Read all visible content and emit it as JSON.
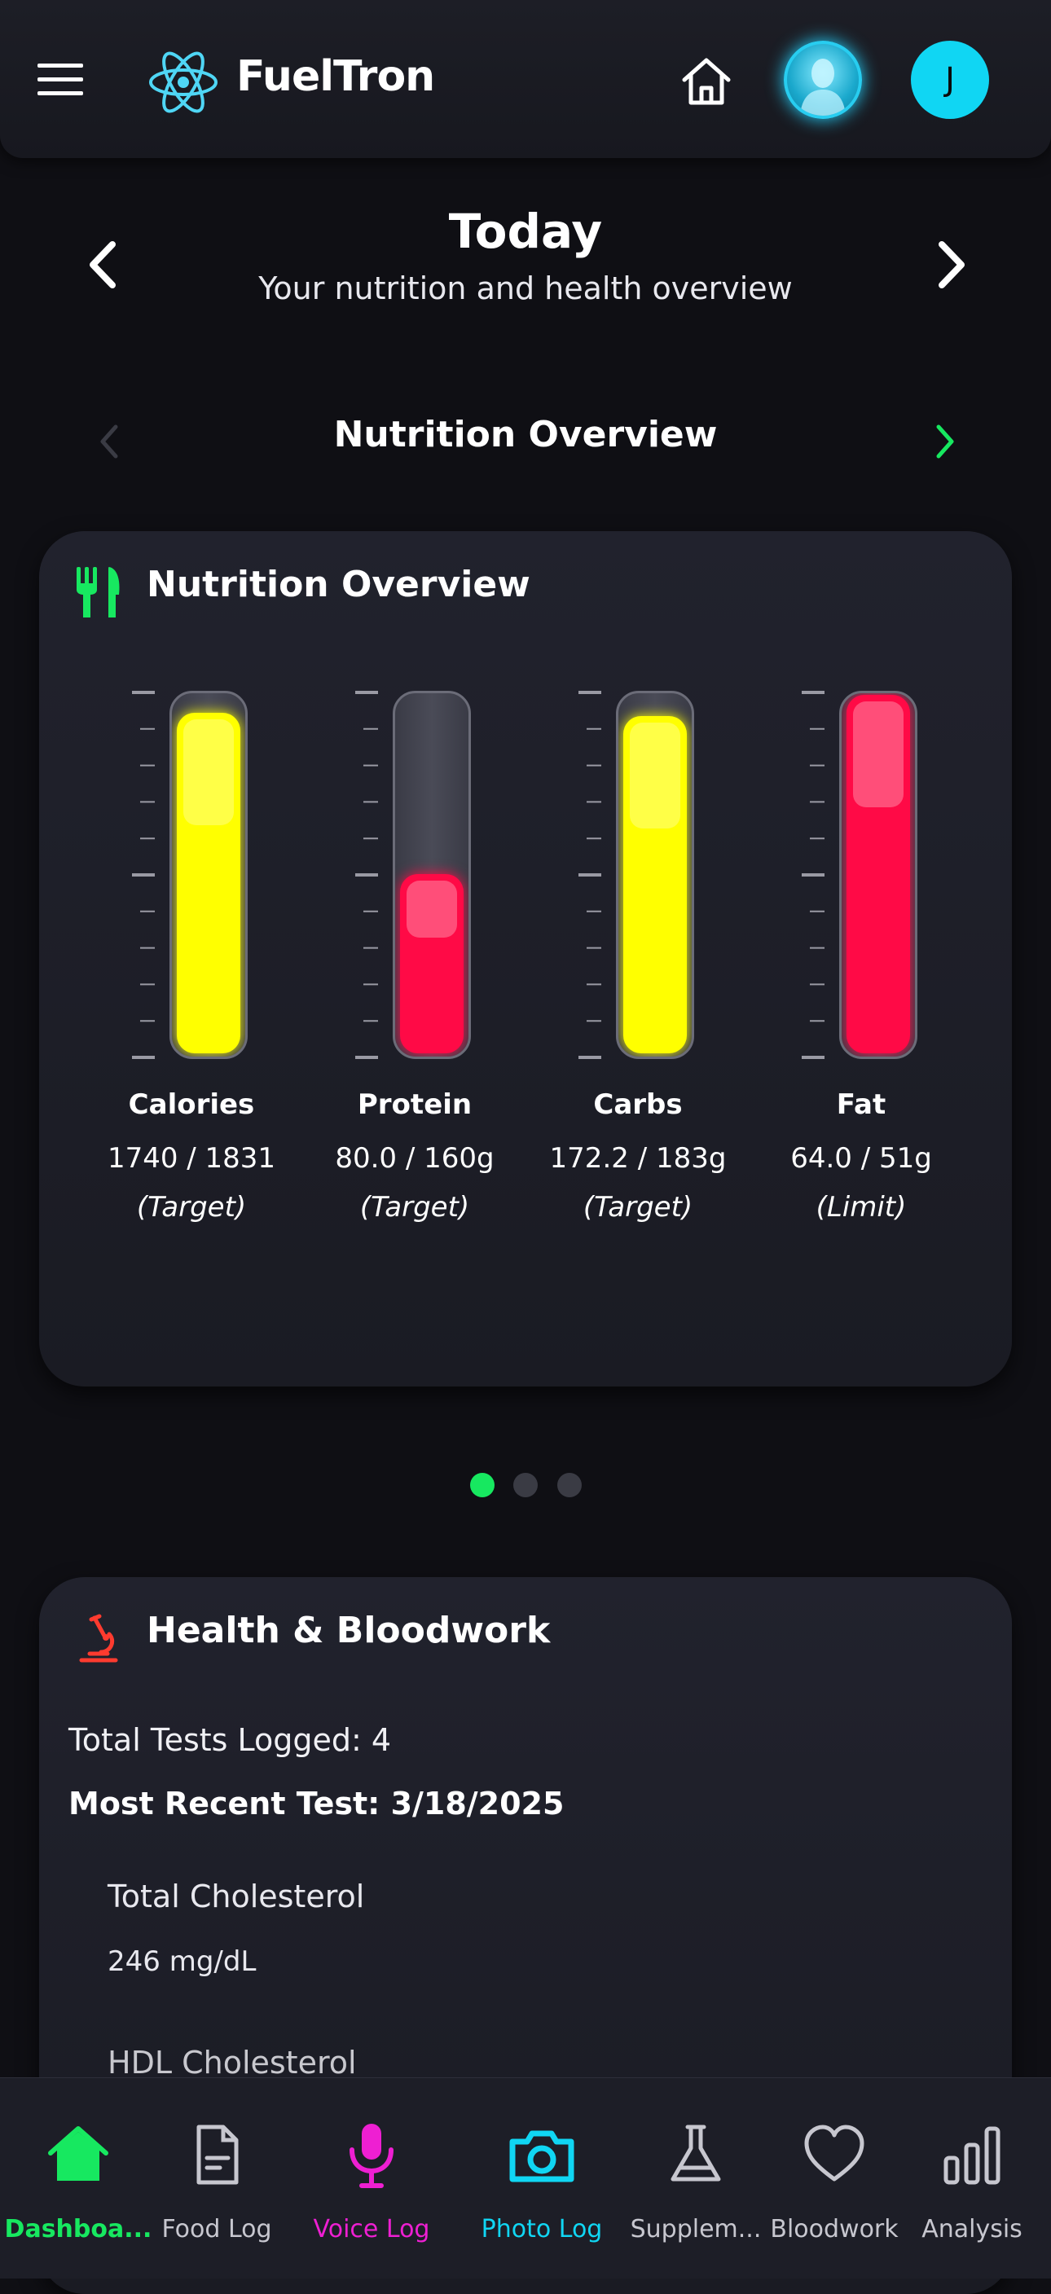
{
  "header": {
    "brand": "FuelTron",
    "user_initial": "J"
  },
  "day": {
    "title": "Today",
    "subtitle": "Your nutrition and health overview"
  },
  "section": {
    "title": "Nutrition Overview"
  },
  "nutrition_card": {
    "title": "Nutrition Overview",
    "gauges": [
      {
        "label": "Calories",
        "value": "1740 / 1831",
        "note": "(Target)",
        "fill_fraction": 0.95,
        "color": "#ffff00"
      },
      {
        "label": "Protein",
        "value": "80.0 / 160g",
        "note": "(Target)",
        "fill_fraction": 0.5,
        "color": "#ff0a46"
      },
      {
        "label": "Carbs",
        "value": "172.2 / 183g",
        "note": "(Target)",
        "fill_fraction": 0.94,
        "color": "#ffff00"
      },
      {
        "label": "Fat",
        "value": "64.0 / 51g",
        "note": "(Limit)",
        "fill_fraction": 1.0,
        "color": "#ff0a46"
      }
    ]
  },
  "carousel": {
    "page_count": 3,
    "active_index": 0
  },
  "health_card": {
    "title": "Health & Bloodwork",
    "total_tests": "Total Tests Logged: 4",
    "most_recent": "Most Recent Test: 3/18/2025",
    "tests": [
      {
        "name": "Total Cholesterol",
        "value": "246 mg/dL"
      },
      {
        "name": "HDL Cholesterol"
      }
    ]
  },
  "bottom_nav": [
    {
      "label": "Dashboa...",
      "icon": "home-icon",
      "color": "#17e860",
      "active": true
    },
    {
      "label": "Food Log",
      "icon": "document-icon",
      "color": "#c7c7cf"
    },
    {
      "label": "Voice Log",
      "icon": "microphone-icon",
      "color": "#ee1fd2"
    },
    {
      "label": "Photo Log",
      "icon": "camera-icon",
      "color": "#10d6f3"
    },
    {
      "label": "Supplem...",
      "icon": "flask-icon",
      "color": "#c7c7cf"
    },
    {
      "label": "Bloodwork",
      "icon": "heart-icon",
      "color": "#c7c7cf"
    },
    {
      "label": "Analysis",
      "icon": "bar-chart-icon",
      "color": "#c7c7cf"
    }
  ]
}
